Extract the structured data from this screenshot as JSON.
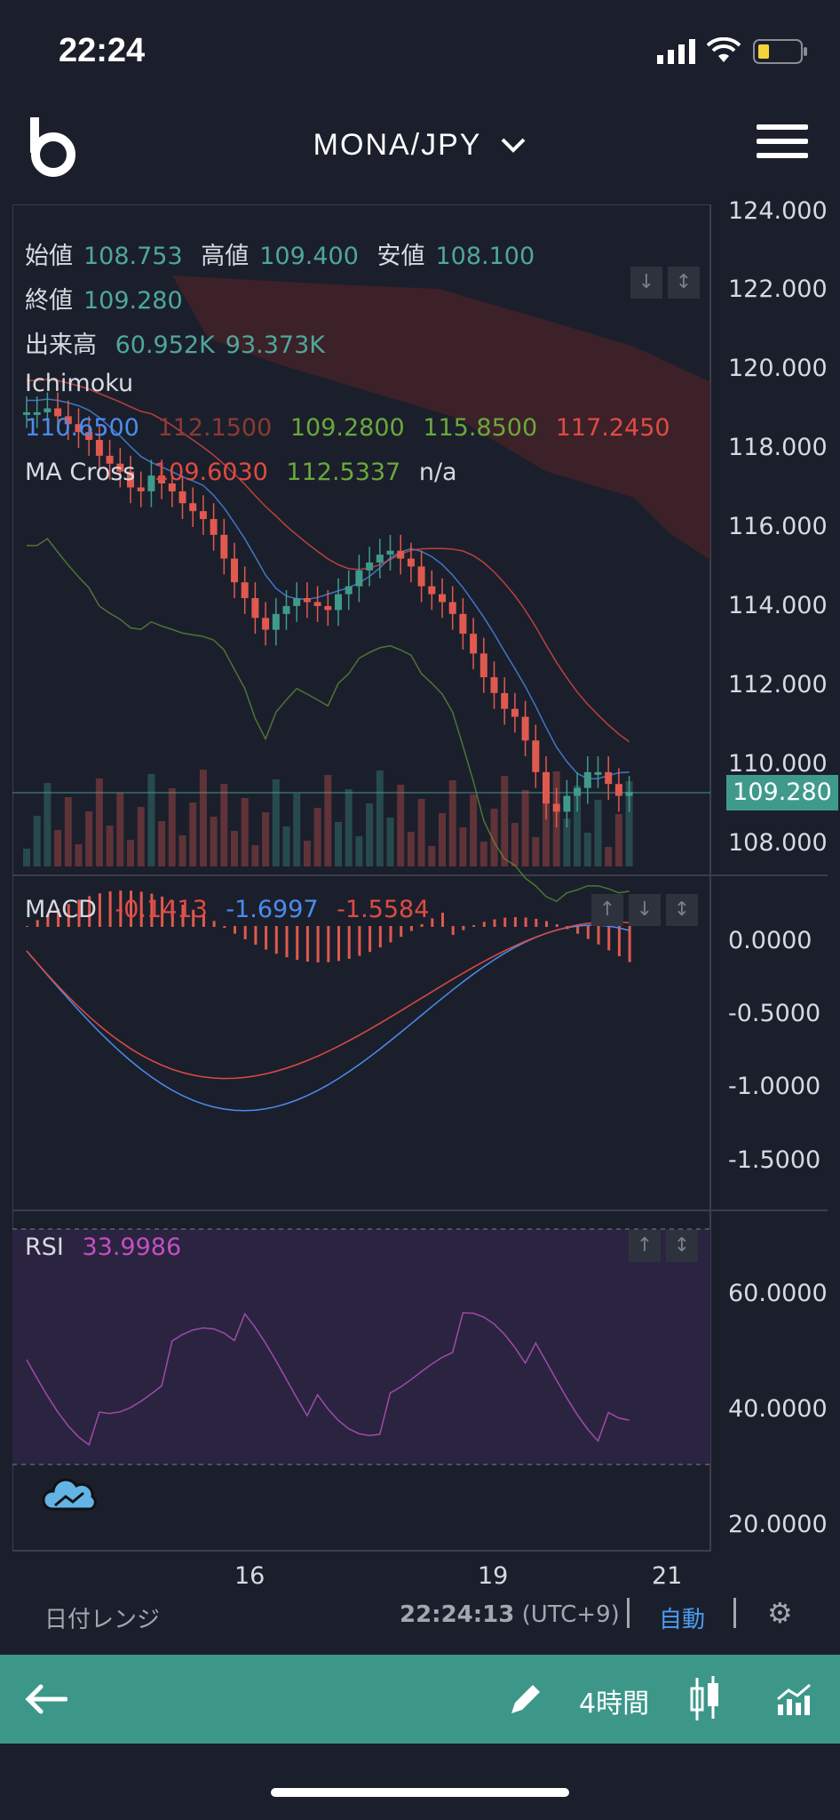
{
  "status_bar": {
    "time": "22:24"
  },
  "header": {
    "pair": "MONA/JPY"
  },
  "legend": {
    "open_label": "始値",
    "open": "108.753",
    "high_label": "高値",
    "high": "109.400",
    "low_label": "安値",
    "low": "108.100",
    "close_label": "終値",
    "close": "109.280",
    "volume_label": "出来高",
    "volume1": "60.952K",
    "volume2": "93.373K",
    "ichimoku_label": "Ichimoku",
    "ichimoku_values": [
      "110.6500",
      "112.1500",
      "109.2800",
      "115.8500",
      "117.2450"
    ],
    "ma_label": "MA Cross",
    "ma1": "109.6030",
    "ma2": "112.5337",
    "ma3": "n/a"
  },
  "price_axis": [
    "124.000",
    "122.000",
    "120.000",
    "118.000",
    "116.000",
    "114.000",
    "112.000",
    "110.000",
    "108.000"
  ],
  "current_price": "109.280",
  "macd": {
    "label": "MACD",
    "v1": "-0.1413",
    "v2": "-1.6997",
    "v3": "-1.5584",
    "axis": [
      "0.0000",
      "-0.5000",
      "-1.0000",
      "-1.5000"
    ]
  },
  "rsi": {
    "label": "RSI",
    "value": "33.9986",
    "axis": [
      "60.0000",
      "40.0000",
      "20.0000"
    ]
  },
  "x_axis": [
    "16",
    "19",
    "21"
  ],
  "footer": {
    "date_range": "日付レンジ",
    "clock": "22:24:13",
    "tz": "(UTC+9)",
    "auto": "自動"
  },
  "toolbar": {
    "interval": "4時間"
  },
  "colors": {
    "up": "#3f9a8c",
    "down": "#e0594f",
    "bg": "#1b1f2b",
    "toolbar": "#3c9789"
  }
}
